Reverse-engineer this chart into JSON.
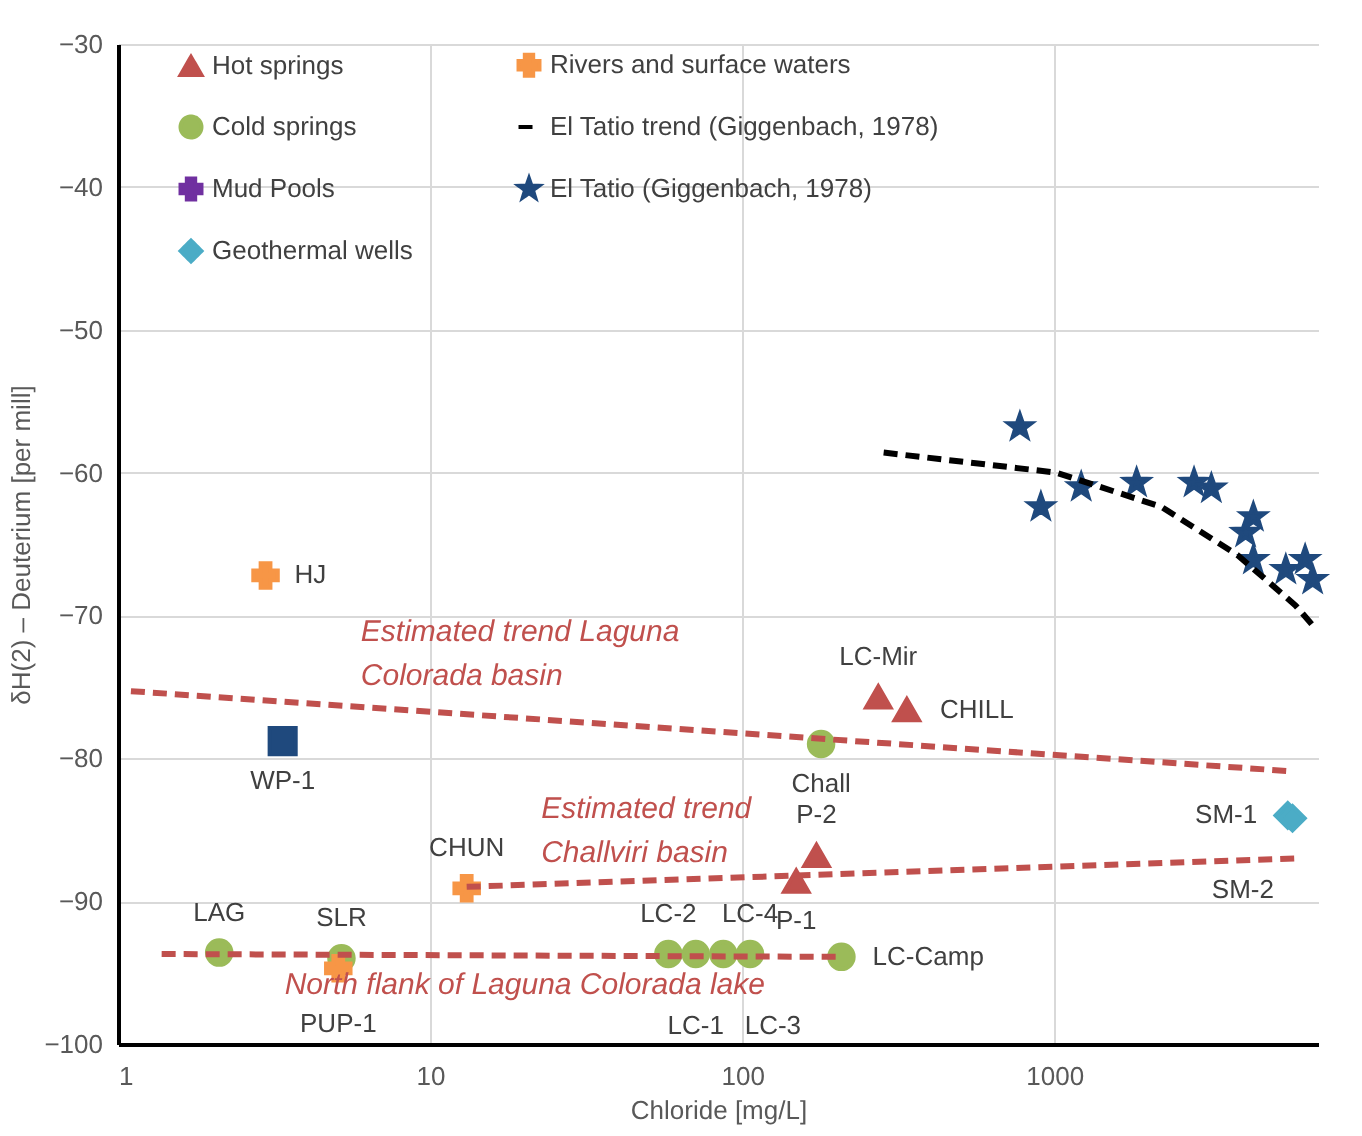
{
  "chart_data": {
    "type": "scatter",
    "xlabel": "Chloride [mg/L]",
    "ylabel": "δH(2) – Deuterium [per mill]",
    "log": "x",
    "xlim": [
      1,
      7000
    ],
    "xticks": [
      1,
      10,
      100,
      1000
    ],
    "ylim": [
      -100,
      -30
    ],
    "yticks": [
      -100,
      -90,
      -80,
      -70,
      -60,
      -50,
      -40,
      -30
    ],
    "grid": true,
    "legend": "top",
    "series": [
      {
        "name": "Hot springs",
        "marker": "triangle",
        "color": "#c0504d",
        "x": [
          273,
          337,
          173,
          149
        ],
        "values": [
          -75.7,
          -76.6,
          -86.8,
          -88.6
        ],
        "value_labels": [
          "LC-Mir",
          "CHILL",
          "P-2",
          "P-1"
        ]
      },
      {
        "name": "Cold springs",
        "marker": "circle",
        "color": "#9bbb59",
        "x": [
          179,
          2.11,
          5.2,
          58,
          71,
          87,
          106,
          208
        ],
        "values": [
          -79,
          -93.6,
          -94,
          -93.7,
          -93.7,
          -93.7,
          -93.7,
          -93.9
        ],
        "value_labels": [
          "Chall",
          "LAG",
          "SLR",
          "LC-2",
          "LC-1",
          "LC-3",
          "LC-4",
          "LC-Camp"
        ]
      },
      {
        "name": "Mud Pools",
        "marker": "cross",
        "color": "#7030a0"
      },
      {
        "name": "Geothermal wells",
        "marker": "diamond",
        "color": "#4bacc6",
        "x": [
          5600,
          5800
        ],
        "values": [
          -84,
          -84.2
        ],
        "value_labels": [
          "SM-1",
          "SM-2"
        ]
      },
      {
        "name": "Rivers and surface waters",
        "marker": "cross",
        "color": "#f79646",
        "x": [
          2.97,
          13.1,
          5.08
        ],
        "values": [
          -67.2,
          -89.1,
          -94.7
        ],
        "value_labels": [
          "HJ",
          "CHUN",
          "PUP-1"
        ]
      },
      {
        "name": "El Tatio trend (Giggenbach, 1978)",
        "type": "line",
        "line_style": "dashed",
        "color": "#000000",
        "x": [
          284,
          1014,
          2206,
          3880,
          5930,
          6920
        ],
        "values": [
          -58.6,
          -60,
          -62.4,
          -65.8,
          -69.3,
          -71
        ]
      },
      {
        "name": "El Tatio (Giggenbach, 1978)",
        "marker": "star",
        "color": "#1f497d",
        "x": [
          776,
          906,
          1220,
          1836,
          2805,
          3187,
          4104,
          4345,
          4345,
          5520,
          6366,
          6730
        ],
        "values": [
          -56.8,
          -62.4,
          -61,
          -60.7,
          -60.7,
          -61.1,
          -64.2,
          -63.1,
          -66.1,
          -66.8,
          -66.1,
          -67.5
        ]
      },
      {
        "marker": "square",
        "color": "#1f497d",
        "x": [
          3.37
        ],
        "values": [
          -78.8
        ],
        "value_labels": [
          "WP-1"
        ]
      },
      {
        "type": "line",
        "line_style": "dashed",
        "color": "#c0504d",
        "x": [
          1.1,
          5690
        ],
        "values": [
          -75.3,
          -80.9
        ]
      },
      {
        "type": "line",
        "line_style": "dashed",
        "color": "#c0504d",
        "x": [
          13.1,
          6100
        ],
        "values": [
          -89,
          -87
        ]
      },
      {
        "type": "line",
        "line_style": "dashed",
        "color": "#c0504d",
        "x": [
          1.38,
          200
        ],
        "values": [
          -93.7,
          -93.9
        ]
      }
    ],
    "annotations": [
      {
        "text": "Estimated trend Laguna\nColorada basin",
        "x": 6,
        "y": -76.4
      },
      {
        "text": "Estimated trend\nChallviri basin",
        "x": 22.7,
        "y": -88.8
      },
      {
        "text": "North flank of Laguna Colorada lake",
        "x": 3.42,
        "y": -93.7
      }
    ]
  }
}
